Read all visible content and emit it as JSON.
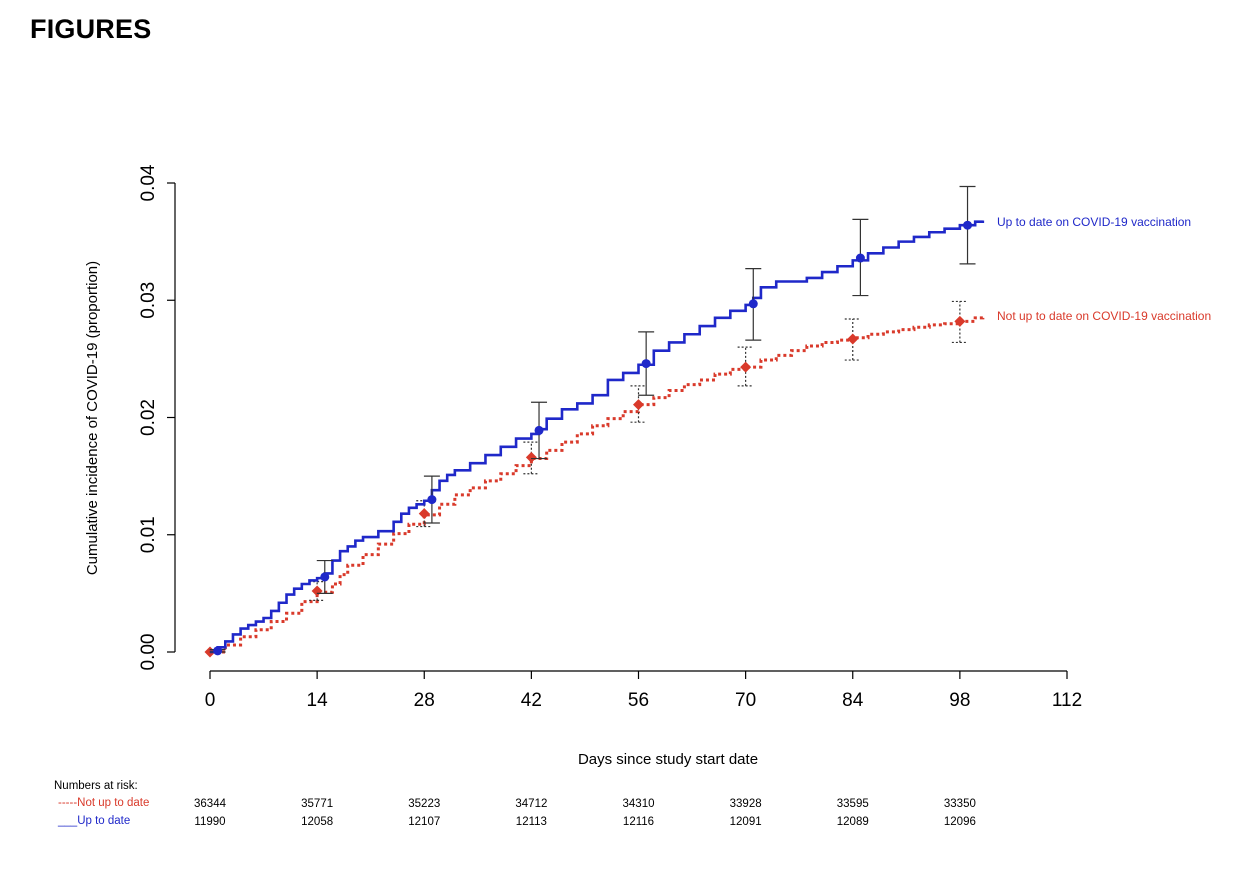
{
  "page": {
    "heading": "FIGURES"
  },
  "chart_data": {
    "type": "line",
    "step": true,
    "xlabel": "Days since study start date",
    "ylabel": "Cumulative incidence of COVID-19 (proportion)",
    "xlim": [
      0,
      112
    ],
    "ylim": [
      0,
      0.04
    ],
    "xticks": [
      "0",
      "14",
      "28",
      "42",
      "56",
      "70",
      "84",
      "98",
      "112"
    ],
    "yticks": [
      "0.00",
      "0.01",
      "0.02",
      "0.03",
      "0.04"
    ],
    "grid": false,
    "legend": "direct labels at line ends (right)",
    "colors": {
      "not_up_to_date": "#d93a2b",
      "up_to_date": "#1f28c9",
      "error_bar": "#333333"
    },
    "series": [
      {
        "key": "up_to_date",
        "name": "Up to date on COVID-19 vaccination",
        "style": "solid",
        "curve": {
          "x": [
            0,
            1,
            2,
            3,
            4,
            5,
            6,
            7,
            8,
            9,
            10,
            11,
            12,
            13,
            14,
            15,
            16,
            17,
            18,
            19,
            20,
            22,
            24,
            25,
            26,
            27,
            28,
            29,
            30,
            31,
            32,
            34,
            36,
            38,
            40,
            42,
            43,
            44,
            46,
            48,
            50,
            52,
            54,
            56,
            58,
            60,
            62,
            64,
            66,
            68,
            70,
            71,
            72,
            74,
            78,
            80,
            82,
            84,
            86,
            88,
            90,
            92,
            94,
            96,
            98,
            100,
            101
          ],
          "y": [
            0,
            0.0004,
            0.0009,
            0.0015,
            0.002,
            0.0023,
            0.0026,
            0.0029,
            0.0035,
            0.0042,
            0.0049,
            0.0054,
            0.0058,
            0.0061,
            0.0063,
            0.0067,
            0.0078,
            0.0086,
            0.009,
            0.0095,
            0.0098,
            0.0103,
            0.0111,
            0.0118,
            0.0123,
            0.0126,
            0.0129,
            0.0138,
            0.0146,
            0.0151,
            0.0155,
            0.0161,
            0.0168,
            0.0175,
            0.0182,
            0.0186,
            0.019,
            0.0199,
            0.0207,
            0.0212,
            0.0219,
            0.0232,
            0.0238,
            0.0245,
            0.0257,
            0.0264,
            0.0271,
            0.0278,
            0.0285,
            0.0291,
            0.0296,
            0.0302,
            0.0311,
            0.0316,
            0.0319,
            0.0324,
            0.0329,
            0.0334,
            0.034,
            0.0345,
            0.035,
            0.0354,
            0.0358,
            0.0361,
            0.0364,
            0.0367,
            0.0368
          ]
        },
        "points": [
          {
            "x": 1,
            "y": 0.0001,
            "lo": 0,
            "hi": 0.0002
          },
          {
            "x": 15,
            "y": 0.0064,
            "lo": 0.005,
            "hi": 0.0078
          },
          {
            "x": 29,
            "y": 0.013,
            "lo": 0.011,
            "hi": 0.015
          },
          {
            "x": 43,
            "y": 0.0189,
            "lo": 0.0165,
            "hi": 0.0213
          },
          {
            "x": 57,
            "y": 0.0246,
            "lo": 0.0219,
            "hi": 0.0273
          },
          {
            "x": 71,
            "y": 0.0297,
            "lo": 0.0266,
            "hi": 0.0327
          },
          {
            "x": 85,
            "y": 0.0336,
            "lo": 0.0304,
            "hi": 0.0369
          },
          {
            "x": 99,
            "y": 0.0364,
            "lo": 0.0331,
            "hi": 0.0397
          }
        ]
      },
      {
        "key": "not_up_to_date",
        "name": "Not up to date on COVID-19 vaccination",
        "style": "dotted",
        "curve": {
          "x": [
            0,
            2,
            4,
            6,
            8,
            10,
            12,
            14,
            16,
            17,
            18,
            20,
            22,
            24,
            26,
            28,
            30,
            32,
            34,
            36,
            38,
            40,
            42,
            44,
            46,
            48,
            50,
            52,
            54,
            56,
            58,
            60,
            62,
            64,
            66,
            68,
            70,
            72,
            74,
            76,
            78,
            80,
            82,
            84,
            86,
            88,
            90,
            92,
            94,
            96,
            98,
            100,
            101
          ],
          "y": [
            0,
            0.0006,
            0.0013,
            0.0019,
            0.0026,
            0.0033,
            0.0043,
            0.0051,
            0.0058,
            0.0066,
            0.0074,
            0.0083,
            0.0092,
            0.0101,
            0.0109,
            0.0117,
            0.0126,
            0.0134,
            0.014,
            0.0146,
            0.0152,
            0.0159,
            0.0165,
            0.0172,
            0.0179,
            0.0186,
            0.0193,
            0.0199,
            0.0205,
            0.0211,
            0.0217,
            0.0223,
            0.0228,
            0.0232,
            0.0237,
            0.0241,
            0.0243,
            0.0249,
            0.0253,
            0.0257,
            0.0261,
            0.0264,
            0.0266,
            0.0268,
            0.0271,
            0.0273,
            0.0275,
            0.0277,
            0.0279,
            0.028,
            0.0282,
            0.0285,
            0.0286
          ]
        },
        "points": [
          {
            "x": 0,
            "y": 0,
            "lo": 0,
            "hi": 0
          },
          {
            "x": 14,
            "y": 0.0052,
            "lo": 0.0044,
            "hi": 0.006
          },
          {
            "x": 28,
            "y": 0.0118,
            "lo": 0.0107,
            "hi": 0.0129
          },
          {
            "x": 42,
            "y": 0.0166,
            "lo": 0.0152,
            "hi": 0.0179
          },
          {
            "x": 56,
            "y": 0.0211,
            "lo": 0.0196,
            "hi": 0.0227
          },
          {
            "x": 70,
            "y": 0.0243,
            "lo": 0.0227,
            "hi": 0.026
          },
          {
            "x": 84,
            "y": 0.0267,
            "lo": 0.0249,
            "hi": 0.0284
          },
          {
            "x": 98,
            "y": 0.0282,
            "lo": 0.0264,
            "hi": 0.0299
          }
        ]
      }
    ]
  },
  "risk_table": {
    "title": "Numbers at risk:",
    "rows": [
      {
        "key": "not_up_to_date",
        "label": "Not up to date",
        "dash": "-----",
        "values": [
          "36344",
          "35771",
          "35223",
          "34712",
          "34310",
          "33928",
          "33595",
          "33350"
        ]
      },
      {
        "key": "up_to_date",
        "label": "Up to date",
        "dash": "___",
        "values": [
          "11990",
          "12058",
          "12107",
          "12113",
          "12116",
          "12091",
          "12089",
          "12096"
        ]
      }
    ],
    "times": [
      0,
      14,
      28,
      42,
      56,
      70,
      84,
      98
    ]
  }
}
